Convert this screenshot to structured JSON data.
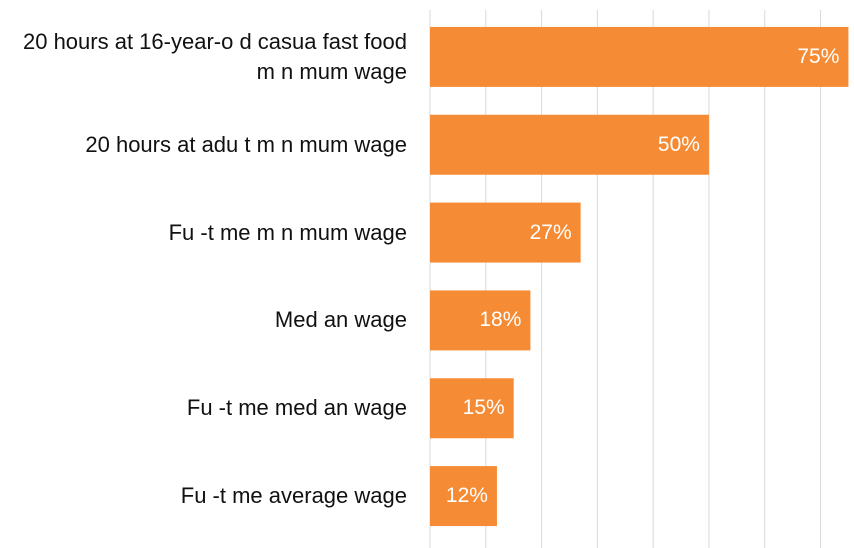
{
  "chart_data": {
    "type": "bar",
    "orientation": "horizontal",
    "categories": [
      "20 hours at 16-year-o d casua fast food m n mum wage",
      "20 hours at adu t m n mum wage",
      "Fu -t me m n mum wage",
      "Med an wage",
      "Fu -t me med an wage",
      "Fu -t me average wage"
    ],
    "values": [
      75,
      50,
      27,
      18,
      15,
      12
    ],
    "value_labels": [
      "75%",
      "50%",
      "27%",
      "18%",
      "15%",
      "12%"
    ],
    "color": "#f58c35",
    "xlim": [
      0,
      76
    ],
    "xticks": [
      0,
      10,
      20,
      30,
      40,
      50,
      60,
      70
    ],
    "grid": true
  }
}
